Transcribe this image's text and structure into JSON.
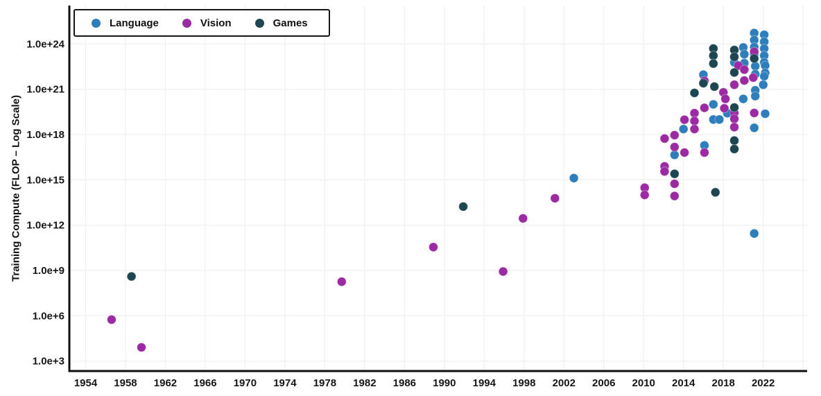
{
  "chart_data": {
    "type": "scatter",
    "title": "",
    "xlabel": "",
    "ylabel": "Training Compute (FLOP – Log Scale)",
    "x_ticks": [
      1954,
      1958,
      1962,
      1966,
      1970,
      1974,
      1978,
      1982,
      1986,
      1990,
      1994,
      1998,
      2002,
      2006,
      2010,
      2014,
      2018,
      2022
    ],
    "x_grid_extra": [
      2026
    ],
    "y_ticks": [
      {
        "label": "1.0e+3",
        "exp": 3
      },
      {
        "label": "1.0e+6",
        "exp": 6
      },
      {
        "label": "1.0e+9",
        "exp": 9
      },
      {
        "label": "1.0e+12",
        "exp": 12
      },
      {
        "label": "1.0e+15",
        "exp": 15
      },
      {
        "label": "1.0e+18",
        "exp": 18
      },
      {
        "label": "1.0e+21",
        "exp": 21
      },
      {
        "label": "1.0e+24",
        "exp": 24
      }
    ],
    "x_range": [
      1952.3,
      2026.5
    ],
    "y_range_log": [
      2.3,
      26.6
    ],
    "grid": true,
    "legend_position": "top-left",
    "legend": [
      {
        "label": "Language",
        "color": "#2e7ebc"
      },
      {
        "label": "Vision",
        "color": "#9c2ba3"
      },
      {
        "label": "Games",
        "color": "#1d4650"
      }
    ],
    "series": [
      {
        "name": "Language",
        "color": "#2e7ebc",
        "points": [
          [
            2003.0,
            1300000000000000.0
          ],
          [
            2013.1,
            4.5e+16
          ],
          [
            2014.0,
            2.3e+18
          ],
          [
            2016.1,
            1.9e+17
          ],
          [
            2016.0,
            9.2e+21
          ],
          [
            2017.0,
            1e+20
          ],
          [
            2017.0,
            1e+19
          ],
          [
            2017.6,
            1e+19
          ],
          [
            2018.4,
            2.6e+19
          ],
          [
            2019.1,
            6e+22
          ],
          [
            2020.0,
            5.9e+23
          ],
          [
            2020.1,
            2.1e+23
          ],
          [
            2020.1,
            5.4e+22
          ],
          [
            2020.0,
            2.3e+20
          ],
          [
            2021.1,
            5.3e+24
          ],
          [
            2021.1,
            1.8e+24
          ],
          [
            2021.1,
            6.2e+23
          ],
          [
            2021.1,
            2.1e+23
          ],
          [
            2021.2,
            3.4e+22
          ],
          [
            2021.2,
            1e+22
          ],
          [
            2021.2,
            8.5e+20
          ],
          [
            2021.2,
            3.5e+20
          ],
          [
            2021.1,
            2.8e+18
          ],
          [
            2021.1,
            280000000000.0
          ],
          [
            2022.1,
            4.1e+24
          ],
          [
            2022.1,
            1.4e+24
          ],
          [
            2022.1,
            5e+23
          ],
          [
            2022.1,
            1.7e+23
          ],
          [
            2022.1,
            6e+22
          ],
          [
            2022.2,
            3.7e+22
          ],
          [
            2022.2,
            1.2e+22
          ],
          [
            2022.1,
            7.2e+21
          ],
          [
            2022.0,
            2e+21
          ],
          [
            2022.2,
            2.4e+19
          ]
        ]
      },
      {
        "name": "Vision",
        "color": "#9c2ba3",
        "points": [
          [
            1956.6,
            550000.0
          ],
          [
            1959.6,
            8000.0
          ],
          [
            1979.7,
            180000000.0
          ],
          [
            1988.9,
            35000000000.0
          ],
          [
            1995.9,
            850000000.0
          ],
          [
            1997.9,
            2800000000000.0
          ],
          [
            2001.1,
            60000000000000.0
          ],
          [
            2010.1,
            300000000000000.0
          ],
          [
            2010.1,
            100000000000000.0
          ],
          [
            2012.1,
            5.4e+17
          ],
          [
            2012.1,
            7800000000000000.0
          ],
          [
            2012.1,
            3600000000000000.0
          ],
          [
            2013.1,
            9.1e+17
          ],
          [
            2013.1,
            1.5e+17
          ],
          [
            2013.1,
            550000000000000.0
          ],
          [
            2013.1,
            85000000000000.0
          ],
          [
            2014.1,
            9.6e+18
          ],
          [
            2014.1,
            6.4e+16
          ],
          [
            2015.1,
            2.6e+19
          ],
          [
            2015.1,
            8e+18
          ],
          [
            2015.1,
            2.3e+18
          ],
          [
            2016.1,
            3.6e+21
          ],
          [
            2016.1,
            5.9e+19
          ],
          [
            2016.1,
            6.4e+16
          ],
          [
            2018.0,
            6.3e+20
          ],
          [
            2018.2,
            2.3e+20
          ],
          [
            2018.1,
            5.5e+19
          ],
          [
            2019.1,
            2e+21
          ],
          [
            2019.1,
            2.7e+19
          ],
          [
            2019.1,
            1.1e+19
          ],
          [
            2019.1,
            3.1e+18
          ],
          [
            2019.5,
            3.7e+22
          ],
          [
            2020.1,
            2e+22
          ],
          [
            2020.1,
            3.8e+21
          ],
          [
            2021.1,
            3.1e+23
          ],
          [
            2021.0,
            5.9e+21
          ],
          [
            2021.1,
            2.7e+19
          ]
        ]
      },
      {
        "name": "Games",
        "color": "#1d4650",
        "points": [
          [
            1958.6,
            400000000.0
          ],
          [
            1991.9,
            17000000000000.0
          ],
          [
            2013.1,
            2500000000000000.0
          ],
          [
            2015.1,
            5.7e+20
          ],
          [
            2016.0,
            2.5e+21
          ],
          [
            2017.0,
            5e+23
          ],
          [
            2017.0,
            1.7e+23
          ],
          [
            2017.0,
            5e+22
          ],
          [
            2017.1,
            1.5e+21
          ],
          [
            2017.2,
            150000000000000.0
          ],
          [
            2019.1,
            4e+23
          ],
          [
            2019.1,
            1.4e+23
          ],
          [
            2019.1,
            1.3e+22
          ],
          [
            2019.1,
            6.2e+19
          ],
          [
            2019.1,
            4e+17
          ],
          [
            2019.1,
            1.1e+17
          ],
          [
            2021.1,
            1.1e+23
          ]
        ]
      }
    ]
  }
}
